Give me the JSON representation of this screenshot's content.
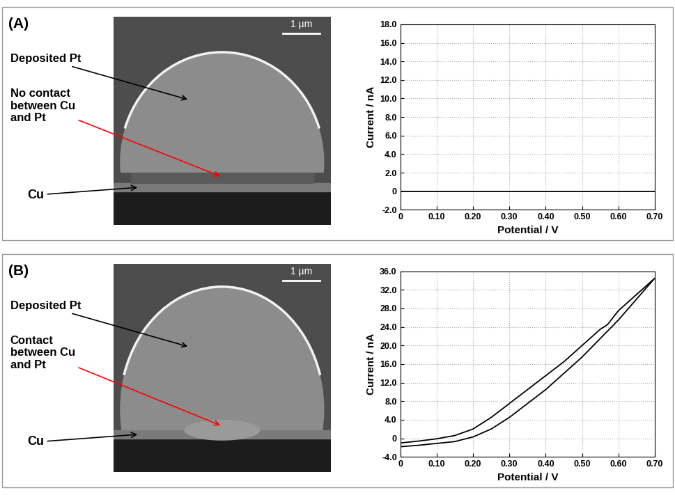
{
  "chart_data": [
    {
      "type": "line",
      "title": "(A)",
      "x_label": "Potential / V",
      "y_label": "Current / nA",
      "annotations": [
        "Deposited Pt",
        "No contact\nbetween Cu\nand Pt",
        "Cu",
        "1 µm"
      ],
      "x": [
        0,
        0.7
      ],
      "values": [
        0,
        0
      ],
      "color": "#000000",
      "xlim": [
        0,
        0.7
      ],
      "xticks": [
        0,
        {
          "value": 0.1,
          "label": "0.10"
        },
        {
          "value": 0.2,
          "label": "0.20"
        },
        {
          "value": 0.3,
          "label": "0.30"
        },
        {
          "value": 0.4,
          "label": "0.40"
        },
        {
          "value": 0.5,
          "label": "0.50"
        },
        {
          "value": 0.6,
          "label": "0.60"
        },
        {
          "value": 0.7,
          "label": "0.70"
        }
      ],
      "ylim": [
        -2,
        18
      ],
      "yticks": [
        {
          "value": -2,
          "label": "-2.0"
        },
        0,
        {
          "value": 2,
          "label": "2.0"
        },
        {
          "value": 4,
          "label": "4.0"
        },
        {
          "value": 6,
          "label": "6.0"
        },
        {
          "value": 8,
          "label": "8.0"
        },
        {
          "value": 10,
          "label": "10.0"
        },
        {
          "value": 12,
          "label": "12.0"
        },
        {
          "value": 14,
          "label": "14.0"
        },
        {
          "value": 16,
          "label": "16.0"
        },
        {
          "value": 18,
          "label": "18.0"
        }
      ],
      "grid": true
    },
    {
      "type": "line",
      "title": "(B)",
      "x_label": "Potential / V",
      "y_label": "Current / nA",
      "annotations": [
        "Deposited Pt",
        "Contact\nbetween Cu\nand Pt",
        "Cu",
        "1 µm"
      ],
      "x": [
        0,
        0.05,
        0.1,
        0.15,
        0.2,
        0.25,
        0.3,
        0.35,
        0.4,
        0.45,
        0.5,
        0.55,
        0.6,
        0.65,
        0.7,
        0.65,
        0.6,
        0.57,
        0.55,
        0.5,
        0.45,
        0.4,
        0.35,
        0.3,
        0.25,
        0.22,
        0.2,
        0.15,
        0.1,
        0.05,
        0
      ],
      "values": [
        -1.8,
        -1.5,
        -1.1,
        -0.7,
        0.3,
        2.0,
        4.5,
        7.5,
        10.5,
        14,
        17.5,
        21.5,
        25.5,
        30,
        34.5,
        31,
        27.5,
        24.5,
        23.5,
        20,
        16.5,
        13.5,
        10.5,
        7.5,
        4.5,
        3,
        2,
        0.6,
        -0.1,
        -0.6,
        -1.0
      ],
      "color": "#000000",
      "xlim": [
        0,
        0.7
      ],
      "xticks": [
        0,
        {
          "value": 0.1,
          "label": "0.10"
        },
        {
          "value": 0.2,
          "label": "0.20"
        },
        {
          "value": 0.3,
          "label": "0.30"
        },
        {
          "value": 0.4,
          "label": "0.40"
        },
        {
          "value": 0.5,
          "label": "0.50"
        },
        {
          "value": 0.6,
          "label": "0.60"
        },
        {
          "value": 0.7,
          "label": "0.70"
        }
      ],
      "ylim": [
        -4,
        36
      ],
      "yticks": [
        {
          "value": -4,
          "label": "-4.0"
        },
        0,
        {
          "value": 4,
          "label": "4.0"
        },
        {
          "value": 8,
          "label": "8.0"
        },
        {
          "value": 12,
          "label": "12.0"
        },
        {
          "value": 16,
          "label": "16.0"
        },
        {
          "value": 20,
          "label": "20.0"
        },
        {
          "value": 24,
          "label": "24.0"
        },
        {
          "value": 28,
          "label": "28.0"
        },
        {
          "value": 32,
          "label": "32.0"
        },
        {
          "value": 36,
          "label": "36.0"
        }
      ],
      "grid": true
    }
  ]
}
